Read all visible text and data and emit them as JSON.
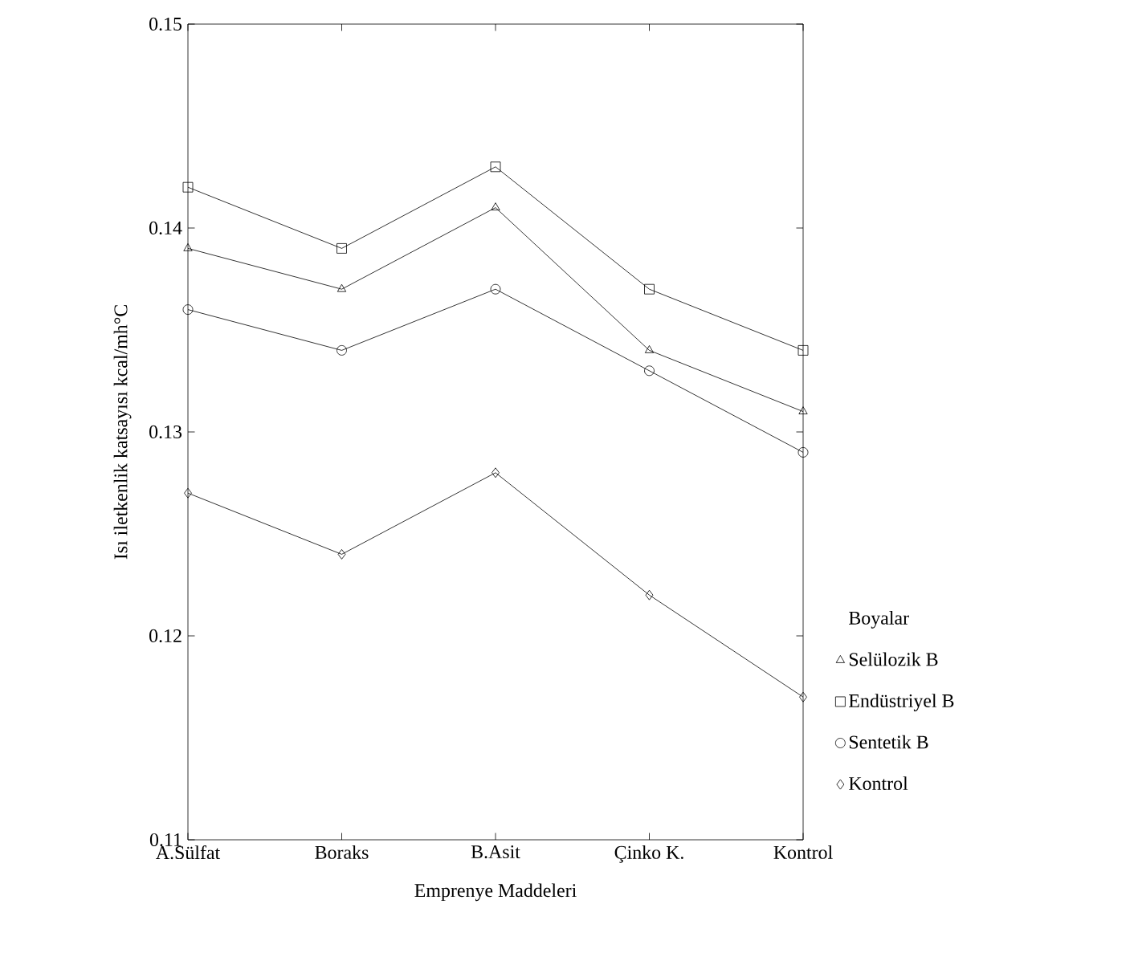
{
  "chart_data": {
    "type": "line",
    "xlabel": "Emprenye Maddeleri",
    "ylabel": "Isı iletkenlik katsayısı  kcal/mh°C",
    "legend_title": "Boyalar",
    "legend": "right",
    "categories": [
      "A.Sülfat",
      "Boraks",
      "B.Asit",
      "Çinko K.",
      "Kontrol"
    ],
    "ylim": [
      0.11,
      0.15
    ],
    "yticks": [
      0.11,
      0.12,
      0.13,
      0.14,
      0.15
    ],
    "grid": false,
    "series": [
      {
        "name": "Selülozik B",
        "color": "#000000",
        "marker": "triangle",
        "values": [
          0.139,
          0.137,
          0.141,
          0.134,
          0.131
        ]
      },
      {
        "name": "Endüstriyel B",
        "color": "#000000",
        "marker": "square",
        "values": [
          0.142,
          0.139,
          0.143,
          0.137,
          0.134
        ]
      },
      {
        "name": "Sentetik B",
        "color": "#000000",
        "marker": "circle",
        "values": [
          0.136,
          0.134,
          0.137,
          0.133,
          0.129
        ]
      },
      {
        "name": "Kontrol",
        "color": "#000000",
        "marker": "diamond",
        "values": [
          0.127,
          0.124,
          0.128,
          0.122,
          0.117
        ]
      }
    ]
  }
}
